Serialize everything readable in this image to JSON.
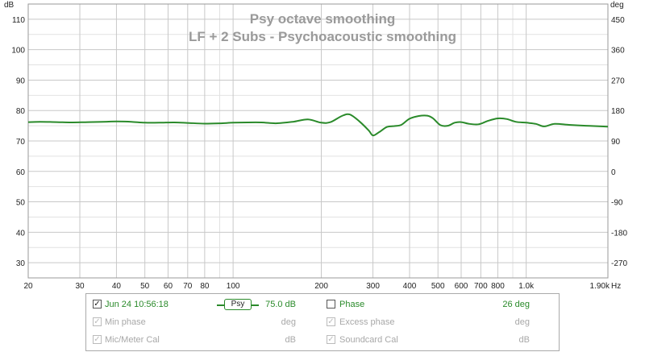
{
  "chart_data": {
    "type": "line",
    "title": "Psy octave smoothing",
    "subtitle": "LF + 2 Subs - Psychoacoustic smoothing",
    "ylabel": "dB",
    "y2label": "deg",
    "xunit": "Hz",
    "x_scale": "log",
    "xlim": [
      20,
      1900
    ],
    "ylim": [
      25,
      115
    ],
    "y2lim": [
      -315,
      495
    ],
    "grid": true,
    "x_ticks": [
      {
        "value": 20,
        "label": "20"
      },
      {
        "value": 30,
        "label": "30"
      },
      {
        "value": 40,
        "label": "40"
      },
      {
        "value": 50,
        "label": "50"
      },
      {
        "value": 60,
        "label": "60"
      },
      {
        "value": 70,
        "label": "70"
      },
      {
        "value": 80,
        "label": "80"
      },
      {
        "value": 100,
        "label": "100"
      },
      {
        "value": 200,
        "label": "200"
      },
      {
        "value": 300,
        "label": "300"
      },
      {
        "value": 400,
        "label": "400"
      },
      {
        "value": 500,
        "label": "500"
      },
      {
        "value": 600,
        "label": "600"
      },
      {
        "value": 700,
        "label": "700"
      },
      {
        "value": 800,
        "label": "800"
      },
      {
        "value": 1000,
        "label": "1.0k"
      },
      {
        "value": 1900,
        "label": "1.90k"
      }
    ],
    "y_ticks": [
      30,
      40,
      50,
      60,
      70,
      80,
      90,
      100,
      110
    ],
    "y2_ticks": [
      -270,
      -180,
      -90,
      0,
      90,
      180,
      270,
      360,
      450
    ],
    "series": [
      {
        "color": "#2a8a2a",
        "x": [
          20,
          22,
          25,
          28,
          32,
          36,
          40,
          45,
          50,
          56,
          63,
          71,
          80,
          90,
          100,
          112,
          125,
          140,
          160,
          180,
          200,
          215,
          235,
          250,
          270,
          290,
          300,
          315,
          335,
          355,
          375,
          400,
          430,
          460,
          480,
          510,
          540,
          570,
          600,
          640,
          690,
          740,
          800,
          860,
          920,
          1000,
          1080,
          1150,
          1250,
          1400,
          1600,
          1800,
          1900
        ],
        "values": [
          76.2,
          76.3,
          76.2,
          76.1,
          76.2,
          76.3,
          76.4,
          76.3,
          76.0,
          76.0,
          76.1,
          75.9,
          75.7,
          75.8,
          76.0,
          76.1,
          76.1,
          75.8,
          76.3,
          77.1,
          76.0,
          76.2,
          78.2,
          78.7,
          76.4,
          73.5,
          71.8,
          72.9,
          74.6,
          74.9,
          75.3,
          77.3,
          78.2,
          78.3,
          77.5,
          75.2,
          75.0,
          76.0,
          76.2,
          75.6,
          75.5,
          76.6,
          77.4,
          77.2,
          76.3,
          76.0,
          75.6,
          74.8,
          75.6,
          75.3,
          75.0,
          74.8,
          74.7
        ]
      }
    ]
  },
  "legend": {
    "row1": {
      "checked": true,
      "label": "Jun 24 10:56:18",
      "badge": "Psy",
      "value": "75.0 dB",
      "phase_checked": false,
      "phase_label": "Phase",
      "phase_value": "26 deg"
    },
    "row2": {
      "label": "Min phase",
      "unit": "deg",
      "label2": "Excess phase",
      "unit2": "deg"
    },
    "row3": {
      "label": "Mic/Meter Cal",
      "unit": "dB",
      "label2": "Soundcard Cal",
      "unit2": "dB"
    },
    "check_glyph": "✓",
    "colors": {
      "trace": "#2a8a2a",
      "disabled": "#a8a8a8"
    }
  }
}
